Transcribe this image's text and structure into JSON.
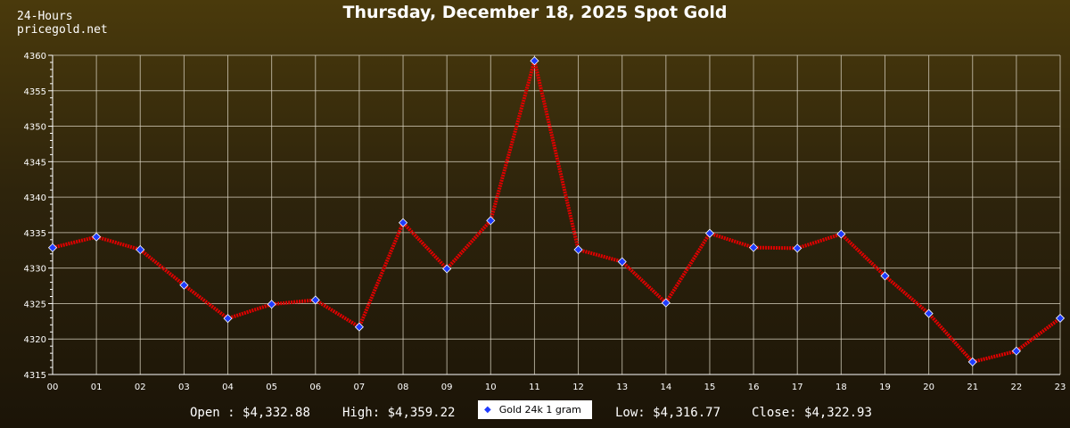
{
  "header": {
    "brand_line1": "24-Hours",
    "brand_line2": "pricegold.net",
    "title": "Thursday, December 18, 2025 Spot Gold"
  },
  "footer": {
    "open_label": "Open :",
    "open_value": "$4,332.88",
    "high_label": "High:",
    "high_value": "$4,359.22",
    "low_label": "Low:",
    "low_value": "$4,316.77",
    "close_label": "Close:",
    "close_value": "$4,322.93"
  },
  "legend": {
    "label": "Gold 24k 1 gram",
    "marker_color": "#1f3cff"
  },
  "colors": {
    "line": "#e00000",
    "marker": "#1f3cff",
    "grid": "#d8d2c0",
    "axis": "#ffffff"
  },
  "chart_data": {
    "type": "line",
    "title": "Thursday, December 18, 2025 Spot Gold",
    "categories": [
      "00",
      "01",
      "02",
      "03",
      "04",
      "05",
      "06",
      "07",
      "08",
      "09",
      "10",
      "11",
      "12",
      "13",
      "14",
      "15",
      "16",
      "17",
      "18",
      "19",
      "20",
      "21",
      "22",
      "23"
    ],
    "series": [
      {
        "name": "Gold 24k 1 gram",
        "values": [
          4332.88,
          4334.4,
          4332.6,
          4327.6,
          4322.9,
          4324.9,
          4325.5,
          4321.7,
          4336.4,
          4329.9,
          4336.7,
          4359.22,
          4332.6,
          4330.9,
          4325.1,
          4334.9,
          4332.9,
          4332.8,
          4334.8,
          4328.9,
          4323.6,
          4316.77,
          4318.3,
          4322.93
        ]
      }
    ],
    "ylim": [
      4315,
      4360
    ],
    "yticks": [
      4315,
      4320,
      4325,
      4330,
      4335,
      4340,
      4345,
      4350,
      4355,
      4360
    ],
    "grid": true,
    "legend_position": "bottom-center"
  }
}
